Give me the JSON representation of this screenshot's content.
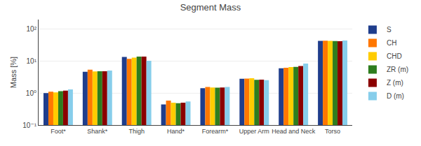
{
  "chart_data": {
    "type": "bar",
    "title": "Segment Mass",
    "ylabel": "Mass [%]",
    "categories": [
      "Foot*",
      "Shank*",
      "Thigh",
      "Hand*",
      "Forearm*",
      "Upper Arm",
      "Head and Neck",
      "Torso"
    ],
    "series": [
      {
        "name": "S",
        "color": "#1f3d8c",
        "values": [
          1.0,
          4.65,
          13.5,
          0.44,
          1.42,
          2.8,
          6.0,
          43.0
        ]
      },
      {
        "name": "CH",
        "color": "#ff7700",
        "values": [
          1.1,
          5.4,
          11.8,
          0.58,
          1.55,
          2.85,
          6.2,
          43.5
        ]
      },
      {
        "name": "CHD",
        "color": "#ffcc00",
        "values": [
          1.05,
          4.75,
          12.8,
          0.5,
          1.5,
          2.9,
          6.5,
          43.0
        ]
      },
      {
        "name": "ZR (m)",
        "color": "#2e7d1e",
        "values": [
          1.15,
          4.8,
          13.8,
          0.48,
          1.48,
          2.6,
          6.6,
          42.5
        ]
      },
      {
        "name": "Z (m)",
        "color": "#8b0000",
        "values": [
          1.2,
          4.8,
          13.8,
          0.5,
          1.5,
          2.65,
          7.0,
          42.0
        ]
      },
      {
        "name": "D (m)",
        "color": "#87ceeb",
        "values": [
          1.3,
          5.1,
          10.3,
          0.55,
          1.55,
          2.55,
          8.4,
          44.0
        ]
      }
    ],
    "log": "y",
    "ylim": [
      0.1,
      200
    ],
    "yticks": [
      {
        "value": 0.1,
        "label": "10⁻¹"
      },
      {
        "value": 1,
        "label": "10⁰"
      },
      {
        "value": 10,
        "label": "10¹"
      },
      {
        "value": 100,
        "label": "10²"
      }
    ],
    "grid": true,
    "legend": "upper right"
  }
}
